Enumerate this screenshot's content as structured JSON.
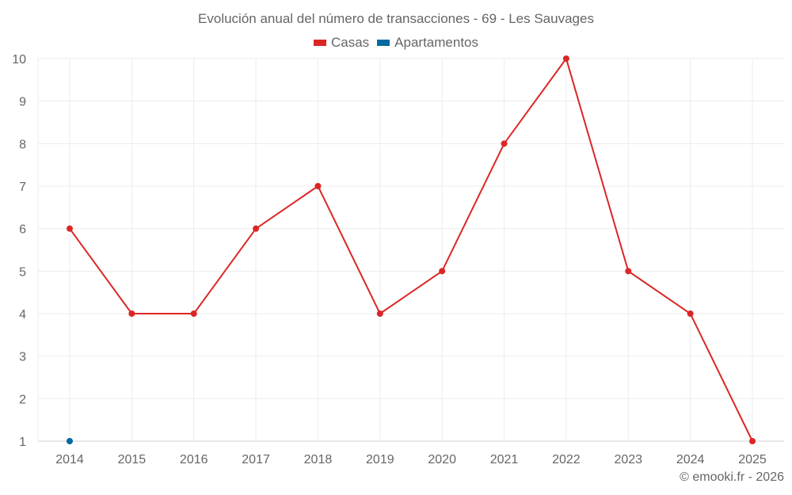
{
  "chart_data": {
    "type": "line",
    "title": "Evolución anual del número de transacciones - 69 - Les Sauvages",
    "categories": [
      "2014",
      "2015",
      "2016",
      "2017",
      "2018",
      "2019",
      "2020",
      "2021",
      "2022",
      "2023",
      "2024",
      "2025"
    ],
    "yticks": [
      1,
      2,
      3,
      4,
      5,
      6,
      7,
      8,
      9,
      10
    ],
    "ylim": [
      1,
      10
    ],
    "grid": true,
    "legend_position": "top-center",
    "series": [
      {
        "name": "Casas",
        "color": "#dc2626",
        "values": [
          6,
          4,
          4,
          6,
          7,
          4,
          5,
          8,
          10,
          5,
          4,
          1
        ]
      },
      {
        "name": "Apartamentos",
        "color": "#0369a1",
        "values": [
          1,
          null,
          null,
          null,
          null,
          null,
          null,
          null,
          null,
          null,
          null,
          null
        ]
      }
    ]
  },
  "credit": "© emooki.fr - 2026"
}
